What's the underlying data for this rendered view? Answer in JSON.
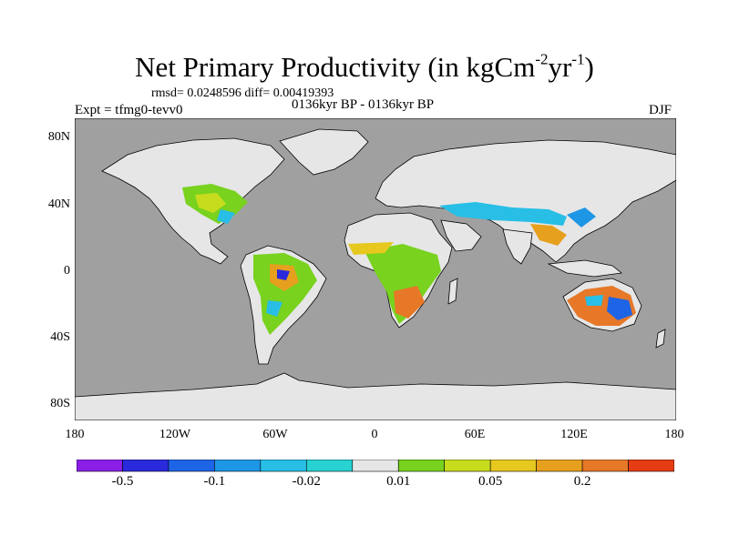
{
  "title": "Net Primary Productivity (in kgCm",
  "title_exp1": "-2",
  "title_mid": "yr",
  "title_exp2": "-1",
  "title_end": ")",
  "stats": "rmsd= 0.0248596 diff= 0.00419393",
  "experiment": "Expt = tfmg0-tevv0",
  "period": "0136kyr BP - 0136kyr BP",
  "season": "DJF",
  "lat_labels": [
    "80N",
    "40N",
    "0",
    "40S",
    "80S"
  ],
  "lon_labels": [
    "180",
    "120W",
    "60W",
    "0",
    "60E",
    "120E",
    "180"
  ],
  "colorbar": {
    "colors": [
      "#8a1ee6",
      "#2a2adc",
      "#1e64e6",
      "#1e96e6",
      "#28bee6",
      "#28d2d2",
      "#e6e6e6",
      "#78d21e",
      "#c8dc1e",
      "#e6c81e",
      "#e6a01e",
      "#e67828",
      "#e63c14"
    ],
    "labels": [
      {
        "text": "-0.5",
        "after_box": 1
      },
      {
        "text": "-0.1",
        "after_box": 3
      },
      {
        "text": "-0.02",
        "after_box": 5
      },
      {
        "text": "0.01",
        "after_box": 7
      },
      {
        "text": "0.05",
        "after_box": 9
      },
      {
        "text": "0.2",
        "after_box": 11
      }
    ]
  },
  "colors": {
    "ocean": "#a0a0a0",
    "land_no_change": "#e6e6e6"
  }
}
